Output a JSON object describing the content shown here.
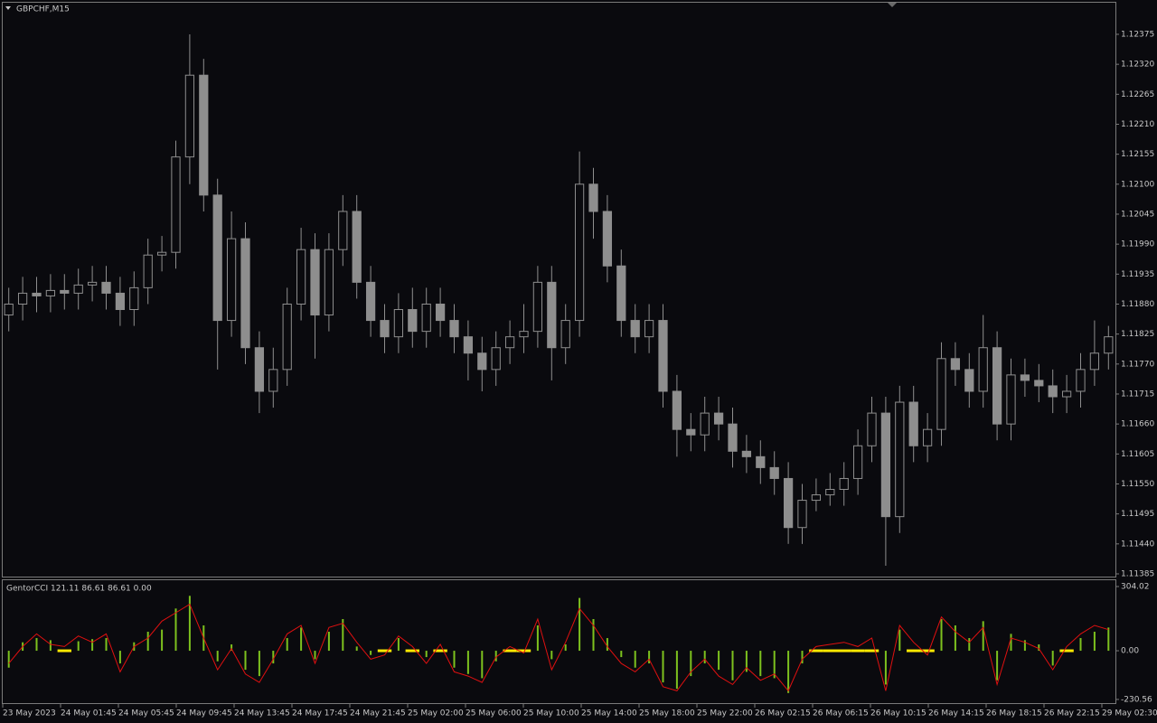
{
  "window": {
    "symbol": "GBPCHF,M15"
  },
  "x_labels": [
    "23 May 2023",
    "24 May 01:45",
    "24 May 05:45",
    "24 May 09:45",
    "24 May 13:45",
    "24 May 17:45",
    "24 May 21:45",
    "25 May 02:00",
    "25 May 06:00",
    "25 May 10:00",
    "25 May 14:00",
    "25 May 18:00",
    "25 May 22:00",
    "26 May 02:15",
    "26 May 06:15",
    "26 May 10:15",
    "26 May 14:15",
    "26 May 18:15",
    "26 May 22:15",
    "29 May 02:30"
  ],
  "chart_data": [
    {
      "type": "candlestick",
      "color": "#8e8e8e",
      "ylim": [
        1.1138,
        1.12433
      ],
      "yticks": [
        1.12375,
        {
          "value": 1.1232,
          "label": "1.12320"
        },
        1.12265,
        {
          "value": 1.1221,
          "label": "1.12210"
        },
        1.12155,
        {
          "value": 1.121,
          "label": "1.12100"
        },
        1.12045,
        {
          "value": 1.1199,
          "label": "1.11990"
        },
        1.11935,
        {
          "value": 1.1188,
          "label": "1.11880"
        },
        1.11825,
        {
          "value": 1.1177,
          "label": "1.11770"
        },
        1.11715,
        {
          "value": 1.1166,
          "label": "1.11660"
        },
        1.11605,
        {
          "value": 1.1155,
          "label": "1.11550"
        },
        1.11495,
        {
          "value": 1.1144,
          "label": "1.11440"
        },
        1.11385
      ],
      "open": [
        1.1186,
        1.1188,
        1.119,
        1.11895,
        1.11905,
        1.119,
        1.11915,
        1.1192,
        1.119,
        1.1187,
        1.1191,
        1.1197,
        1.11975,
        1.1215,
        1.123,
        1.1208,
        1.1185,
        1.12,
        1.118,
        1.1172,
        1.1176,
        1.1188,
        1.1198,
        1.1186,
        1.1198,
        1.1205,
        1.1192,
        1.1185,
        1.1182,
        1.1187,
        1.1183,
        1.1188,
        1.1185,
        1.1182,
        1.1179,
        1.1176,
        1.118,
        1.1182,
        1.1183,
        1.1192,
        1.118,
        1.1185,
        1.121,
        1.1205,
        1.1195,
        1.1185,
        1.1182,
        1.1185,
        1.1172,
        1.1165,
        1.1164,
        1.1168,
        1.1166,
        1.1161,
        1.116,
        1.1158,
        1.1156,
        1.1147,
        1.1152,
        1.1153,
        1.1154,
        1.1156,
        1.1162,
        1.1168,
        1.1149,
        1.117,
        1.1162,
        1.1165,
        1.1178,
        1.1176,
        1.1172,
        1.118,
        1.1166,
        1.1175,
        1.1174,
        1.1173,
        1.1171,
        1.1172,
        1.1176,
        1.1179
      ],
      "high": [
        1.1191,
        1.1193,
        1.1193,
        1.11935,
        1.11935,
        1.11945,
        1.1195,
        1.1195,
        1.1193,
        1.1194,
        1.12,
        1.12005,
        1.1218,
        1.12375,
        1.1233,
        1.1211,
        1.1205,
        1.1203,
        1.1183,
        1.118,
        1.1191,
        1.1202,
        1.1201,
        1.1201,
        1.1208,
        1.1208,
        1.1195,
        1.1188,
        1.119,
        1.1191,
        1.1191,
        1.1191,
        1.1188,
        1.1185,
        1.1182,
        1.1183,
        1.1185,
        1.1188,
        1.1195,
        1.1195,
        1.1188,
        1.1216,
        1.1213,
        1.1208,
        1.1198,
        1.1188,
        1.1188,
        1.1188,
        1.1175,
        1.1168,
        1.1171,
        1.1171,
        1.1169,
        1.1164,
        1.1163,
        1.1161,
        1.1159,
        1.1155,
        1.1156,
        1.1157,
        1.1159,
        1.1165,
        1.1171,
        1.1171,
        1.1173,
        1.1173,
        1.1168,
        1.1181,
        1.1181,
        1.1179,
        1.1186,
        1.1183,
        1.1178,
        1.1178,
        1.1177,
        1.1176,
        1.1175,
        1.1179,
        1.1185,
        1.1184
      ],
      "low": [
        1.1183,
        1.1185,
        1.11865,
        1.11865,
        1.1187,
        1.1187,
        1.11885,
        1.1187,
        1.1184,
        1.1184,
        1.1188,
        1.1194,
        1.11945,
        1.121,
        1.1205,
        1.1176,
        1.1182,
        1.1177,
        1.1168,
        1.1169,
        1.1173,
        1.1185,
        1.1178,
        1.1183,
        1.1195,
        1.1189,
        1.1182,
        1.1179,
        1.1179,
        1.118,
        1.118,
        1.1182,
        1.1179,
        1.1174,
        1.1172,
        1.1173,
        1.1177,
        1.1179,
        1.118,
        1.1174,
        1.1177,
        1.1182,
        1.12,
        1.1192,
        1.1182,
        1.1179,
        1.1179,
        1.1169,
        1.116,
        1.1161,
        1.1161,
        1.1163,
        1.1158,
        1.1157,
        1.1155,
        1.1153,
        1.1144,
        1.1144,
        1.115,
        1.1151,
        1.1151,
        1.1153,
        1.1159,
        1.114,
        1.1146,
        1.1159,
        1.1159,
        1.1162,
        1.1173,
        1.1169,
        1.1169,
        1.1163,
        1.1163,
        1.1171,
        1.117,
        1.1168,
        1.1168,
        1.1169,
        1.1173,
        1.1176
      ],
      "close": [
        1.1188,
        1.119,
        1.11895,
        1.11905,
        1.119,
        1.11915,
        1.1192,
        1.119,
        1.1187,
        1.1191,
        1.1197,
        1.11975,
        1.1215,
        1.123,
        1.1208,
        1.1185,
        1.12,
        1.118,
        1.1172,
        1.1176,
        1.1188,
        1.1198,
        1.1186,
        1.1198,
        1.1205,
        1.1192,
        1.1185,
        1.1182,
        1.1187,
        1.1183,
        1.1188,
        1.1185,
        1.1182,
        1.1179,
        1.1176,
        1.118,
        1.1182,
        1.1183,
        1.1192,
        1.118,
        1.1185,
        1.121,
        1.1205,
        1.1195,
        1.1185,
        1.1182,
        1.1185,
        1.1172,
        1.1165,
        1.1164,
        1.1168,
        1.1166,
        1.1161,
        1.116,
        1.1158,
        1.1156,
        1.1147,
        1.1152,
        1.1153,
        1.1154,
        1.1156,
        1.1162,
        1.1168,
        1.1149,
        1.117,
        1.1162,
        1.1165,
        1.1178,
        1.1176,
        1.1172,
        1.118,
        1.1166,
        1.1175,
        1.1174,
        1.1173,
        1.1171,
        1.1172,
        1.1176,
        1.1179,
        1.1182
      ]
    },
    {
      "type": "indicator",
      "title": "GentorCCI 121.11 86.61 86.61 0.00",
      "ylim": [
        -248,
        334
      ],
      "yticks": [
        304.02,
        {
          "value": 0,
          "label": "0.00"
        },
        -230.56
      ],
      "zero_color": "#ffe900",
      "series": [
        {
          "type": "bar",
          "color": "#7dc11e",
          "values": [
            -80,
            40,
            60,
            50,
            0,
            45,
            55,
            60,
            -60,
            40,
            90,
            100,
            200,
            260,
            120,
            -50,
            30,
            -90,
            -120,
            -60,
            60,
            110,
            -40,
            90,
            150,
            20,
            -20,
            0,
            60,
            0,
            -30,
            0,
            -80,
            -110,
            -130,
            -50,
            0,
            0,
            120,
            -40,
            30,
            250,
            150,
            60,
            -30,
            -80,
            -60,
            -150,
            -180,
            -120,
            -60,
            -90,
            -140,
            -100,
            -120,
            -130,
            -200,
            -60,
            0,
            0,
            0,
            0,
            0,
            -160,
            100,
            0,
            0,
            150,
            120,
            60,
            140,
            -140,
            80,
            50,
            30,
            -70,
            0,
            60,
            90,
            110
          ]
        },
        {
          "type": "line",
          "color": "#e01010",
          "values": [
            -60,
            20,
            80,
            30,
            20,
            70,
            40,
            80,
            -100,
            20,
            60,
            140,
            180,
            220,
            60,
            -90,
            10,
            -110,
            -150,
            -40,
            80,
            120,
            -60,
            110,
            130,
            40,
            -40,
            -20,
            70,
            20,
            -60,
            30,
            -100,
            -120,
            -150,
            -30,
            20,
            -10,
            150,
            -90,
            40,
            200,
            120,
            20,
            -60,
            -100,
            -40,
            -170,
            -190,
            -100,
            -40,
            -120,
            -160,
            -80,
            -140,
            -110,
            -190,
            -40,
            20,
            30,
            40,
            20,
            60,
            -190,
            120,
            40,
            -20,
            160,
            90,
            40,
            110,
            -160,
            60,
            40,
            10,
            -90,
            20,
            80,
            120,
            100
          ]
        }
      ]
    }
  ]
}
